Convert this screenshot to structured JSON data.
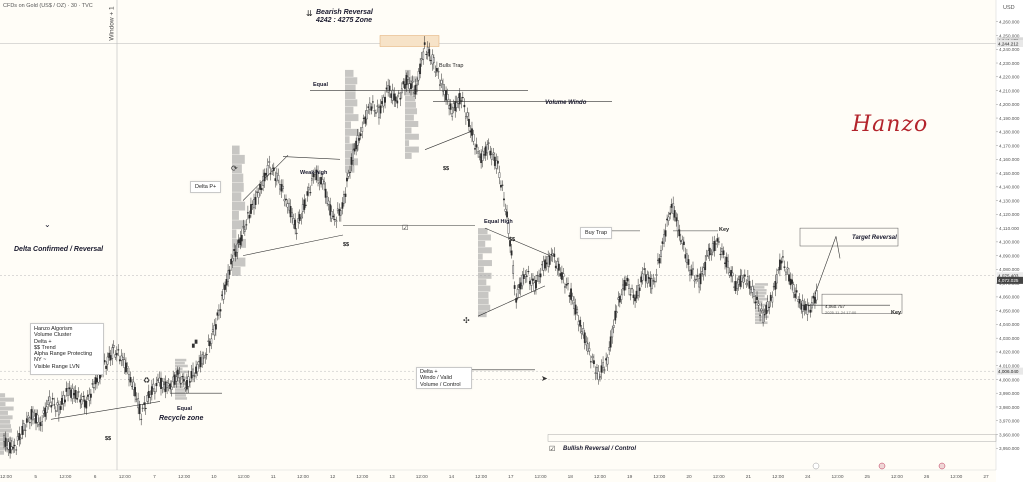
{
  "header": {
    "symbol_line": "CFDs on Gold (US$ / OZ) · 30 · TVC",
    "window_label": "Window + 1"
  },
  "colors": {
    "background": "#fffdf7",
    "candle": "#2b2b2b",
    "trend_line": "#333333",
    "zone_fill": "#f7e3c8",
    "signature": "#b3242c",
    "volume_profile": "#999999"
  },
  "annotations": {
    "bearish_title": "Bearish Reversal",
    "bearish_zone": "4242 : 4275 Zone",
    "volume_window": "Volume Windo",
    "bulls_trap": "Bulls Trap",
    "equal_top": "Equal",
    "weak_high": "Weak high",
    "delta_p": "Delta P+",
    "equal_high": "Equal High",
    "delta_confirmed": "Delta Confirmed / Reversal",
    "buy_trap": "Buy Trap",
    "key_upper": "Key",
    "target_reversal": "Target Reversal",
    "key_lower": "Key",
    "equal_bottom": "Equal",
    "recycle_zone": "Recycle zone",
    "bullish_reversal": "Bullish Reversal / Control",
    "delta_window": [
      "Delta +",
      "Windo / Valid",
      "Volume / Control"
    ],
    "hanzo_box": [
      "Hanzo Algorism",
      "",
      "Volume Cluster",
      "Delta +",
      "$$ Trend",
      "Alpha Range Protecting",
      "NY ~",
      "Visible Range LVN"
    ],
    "ss_marks": [
      "$$",
      "$$",
      "$$",
      "$$"
    ],
    "ruler_value": "4,060.757",
    "ruler_date": "2025-11-24 17:00",
    "signature": "Hanzo"
  },
  "chart_data": {
    "type": "candlestick",
    "title": "CFDs on Gold (US$ / OZ) · 30 · TVC",
    "ylabel": "USD",
    "ylim": [
      3940,
      4270
    ],
    "y_ticks": [
      3950,
      3960,
      3970,
      3980,
      3990,
      4000,
      4010,
      4020,
      4030,
      4040,
      4050,
      4060,
      4070,
      4080,
      4090,
      4100,
      4110,
      4120,
      4130,
      4140,
      4150,
      4160,
      4170,
      4180,
      4190,
      4200,
      4210,
      4220,
      4230,
      4240,
      4250,
      4260
    ],
    "y_tick_labels": [
      "3,950.000",
      "3,960.000",
      "3,970.000",
      "3,980.000",
      "3,990.000",
      "4,000.000",
      "4,010.000",
      "4,020.000",
      "4,030.000",
      "4,040.000",
      "4,050.000",
      "4,060.000",
      "4,070.000",
      "4,080.000",
      "4,090.000",
      "4,100.000",
      "4,110.000",
      "4,120.000",
      "4,130.000",
      "4,140.000",
      "4,150.000",
      "4,160.000",
      "4,170.000",
      "4,180.000",
      "4,190.000",
      "4,200.000",
      "4,210.000",
      "4,220.000",
      "4,230.000",
      "4,240.000",
      "4,250.000",
      "4,260.000"
    ],
    "x_tick_labels": [
      "12:00",
      "5",
      "12:00",
      "6",
      "12:00",
      "7",
      "12:00",
      "10",
      "12:00",
      "11",
      "12:00",
      "12",
      "12:00",
      "13",
      "12:00",
      "14",
      "12:00",
      "17",
      "12:00",
      "18",
      "12:00",
      "19",
      "12:00",
      "20",
      "12:00",
      "21",
      "12:00",
      "24",
      "12:00",
      "25",
      "12:00",
      "26",
      "12:00",
      "27"
    ],
    "price_tags": [
      {
        "price": 4246.178,
        "label": "4,246.178",
        "bg": "#d9d9d9",
        "fg": "#222222"
      },
      {
        "price": 4244.212,
        "label": "4,244.212",
        "bg": "#e8e8e8",
        "fg": "#222222"
      },
      {
        "price": 4075.403,
        "label": "4,075.403",
        "bg": "#ececec",
        "fg": "#222222"
      },
      {
        "price": 4072.025,
        "label": "4,072.025",
        "bg": "#444444",
        "fg": "#ffffff"
      },
      {
        "price": 4006.04,
        "label": "4,006.040",
        "bg": "#e8e8e8",
        "fg": "#222222"
      }
    ],
    "horizontal_levels": [
      4244.2,
      4075.4,
      4006.0,
      4000.0
    ],
    "path": [
      [
        0,
        3955
      ],
      [
        1,
        3948
      ],
      [
        2,
        3962
      ],
      [
        3,
        3975
      ],
      [
        4,
        3968
      ],
      [
        5,
        3985
      ],
      [
        6,
        3978
      ],
      [
        7,
        3992
      ],
      [
        8,
        3988
      ],
      [
        9,
        3983
      ],
      [
        10,
        3998
      ],
      [
        11,
        4010
      ],
      [
        12,
        4021
      ],
      [
        13,
        4015
      ],
      [
        14,
        3998
      ],
      [
        15,
        3975
      ],
      [
        16,
        3990
      ],
      [
        17,
        3998
      ],
      [
        18,
        3993
      ],
      [
        19,
        4003
      ],
      [
        20,
        3996
      ],
      [
        21,
        4008
      ],
      [
        22,
        4018
      ],
      [
        23,
        4036
      ],
      [
        24,
        4062
      ],
      [
        25,
        4088
      ],
      [
        26,
        4104
      ],
      [
        27,
        4124
      ],
      [
        28,
        4138
      ],
      [
        29,
        4155
      ],
      [
        30,
        4145
      ],
      [
        31,
        4128
      ],
      [
        32,
        4110
      ],
      [
        33,
        4130
      ],
      [
        34,
        4150
      ],
      [
        35,
        4140
      ],
      [
        36,
        4115
      ],
      [
        37,
        4125
      ],
      [
        38,
        4160
      ],
      [
        39,
        4180
      ],
      [
        40,
        4200
      ],
      [
        41,
        4194
      ],
      [
        42,
        4211
      ],
      [
        43,
        4202
      ],
      [
        44,
        4218
      ],
      [
        45,
        4210
      ],
      [
        46,
        4242
      ],
      [
        47,
        4230
      ],
      [
        48,
        4212
      ],
      [
        49,
        4195
      ],
      [
        50,
        4206
      ],
      [
        51,
        4182
      ],
      [
        52,
        4160
      ],
      [
        53,
        4168
      ],
      [
        54,
        4155
      ],
      [
        55,
        4120
      ],
      [
        56,
        4060
      ],
      [
        57,
        4078
      ],
      [
        58,
        4068
      ],
      [
        59,
        4082
      ],
      [
        60,
        4090
      ],
      [
        61,
        4075
      ],
      [
        62,
        4062
      ],
      [
        63,
        4040
      ],
      [
        64,
        4020
      ],
      [
        65,
        4002
      ],
      [
        66,
        4015
      ],
      [
        67,
        4052
      ],
      [
        68,
        4072
      ],
      [
        69,
        4058
      ],
      [
        70,
        4077
      ],
      [
        71,
        4068
      ],
      [
        72,
        4098
      ],
      [
        73,
        4128
      ],
      [
        74,
        4104
      ],
      [
        75,
        4080
      ],
      [
        76,
        4070
      ],
      [
        77,
        4090
      ],
      [
        78,
        4100
      ],
      [
        79,
        4085
      ],
      [
        80,
        4068
      ],
      [
        81,
        4075
      ],
      [
        82,
        4062
      ],
      [
        83,
        4045
      ],
      [
        84,
        4060
      ],
      [
        85,
        4088
      ],
      [
        86,
        4072
      ],
      [
        87,
        4055
      ],
      [
        88,
        4050
      ],
      [
        89,
        4064
      ]
    ]
  },
  "axis": {
    "currency": "USD"
  }
}
